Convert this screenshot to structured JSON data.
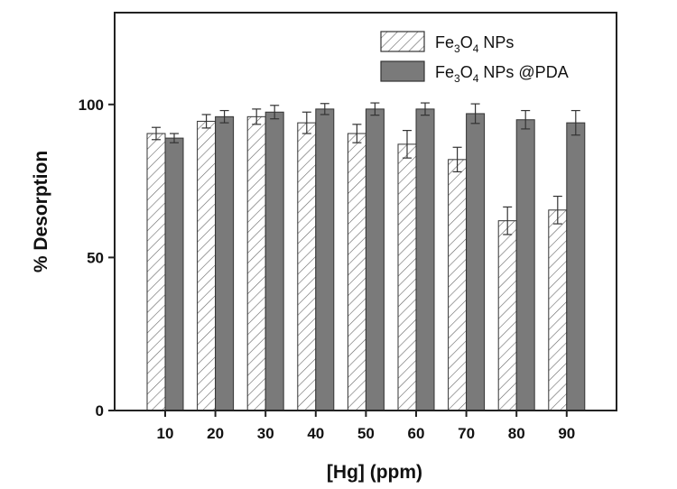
{
  "chart_data": {
    "type": "bar",
    "categories": [
      "10",
      "20",
      "30",
      "40",
      "50",
      "60",
      "70",
      "80",
      "90"
    ],
    "series": [
      {
        "name": "Fe3O4 NPs",
        "values": [
          90.5,
          94.5,
          96,
          94,
          90.5,
          87,
          82,
          62,
          65.5
        ],
        "errors": [
          2,
          2.2,
          2.5,
          3.5,
          3,
          4.5,
          4,
          4.5,
          4.5
        ],
        "pattern": "hatched"
      },
      {
        "name": "Fe3O4 NPs @PDA",
        "values": [
          89,
          96,
          97.5,
          98.5,
          98.5,
          98.5,
          97,
          95,
          94
        ],
        "errors": [
          1.5,
          2,
          2.2,
          1.8,
          2,
          2,
          3.2,
          3,
          4
        ],
        "pattern": "solid"
      }
    ],
    "xlabel": "[Hg] (ppm)",
    "ylabel": "% Desorption",
    "ylim": [
      0,
      130
    ],
    "yticks": [
      0,
      50,
      100
    ],
    "legend_position": "top-right",
    "grid": false,
    "colors": {
      "hatched_stroke": "#555555",
      "solid_fill": "#7a7a7a",
      "axis": "#222222"
    }
  }
}
